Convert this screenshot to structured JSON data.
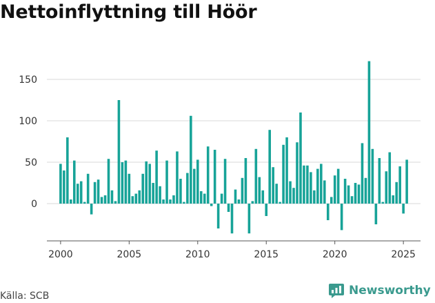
{
  "title": "Nettoinflyttning till Höör",
  "source": "Källa: SCB",
  "brand": {
    "name": "Newsworthy",
    "icon": "newsworthy-logo-icon",
    "color": "#3a9a8e"
  },
  "colors": {
    "bar": "#17a398",
    "grid": "#d9d9d9",
    "axis": "#555555"
  },
  "chart_data": {
    "type": "bar",
    "title": "Nettoinflyttning till Höör",
    "xlabel": "",
    "ylabel": "",
    "x_ticks": [
      2000,
      2005,
      2010,
      2015,
      2020,
      2025
    ],
    "y_ticks": [
      0,
      50,
      100,
      150
    ],
    "xlim": [
      1999.0,
      2026.25
    ],
    "ylim": [
      -45,
      175
    ],
    "grid": "horizontal",
    "legend": "none",
    "x_start": 2000.0,
    "x_step": 0.25,
    "values": [
      48,
      40,
      80,
      5,
      52,
      24,
      27,
      2,
      36,
      -13,
      26,
      29,
      8,
      10,
      54,
      16,
      3,
      125,
      50,
      52,
      36,
      9,
      12,
      16,
      36,
      51,
      48,
      25,
      64,
      21,
      5,
      52,
      5,
      10,
      63,
      30,
      2,
      37,
      106,
      42,
      53,
      15,
      12,
      69,
      -3,
      65,
      -30,
      12,
      54,
      -10,
      -36,
      17,
      5,
      31,
      55,
      -36,
      3,
      66,
      32,
      16,
      -15,
      89,
      44,
      24,
      2,
      71,
      80,
      27,
      19,
      74,
      110,
      46,
      46,
      38,
      16,
      42,
      48,
      28,
      -20,
      8,
      34,
      42,
      -32,
      30,
      22,
      9,
      25,
      23,
      73,
      31,
      172,
      66,
      -25,
      55,
      2,
      39,
      62,
      10,
      26,
      45,
      -12,
      53
    ]
  }
}
